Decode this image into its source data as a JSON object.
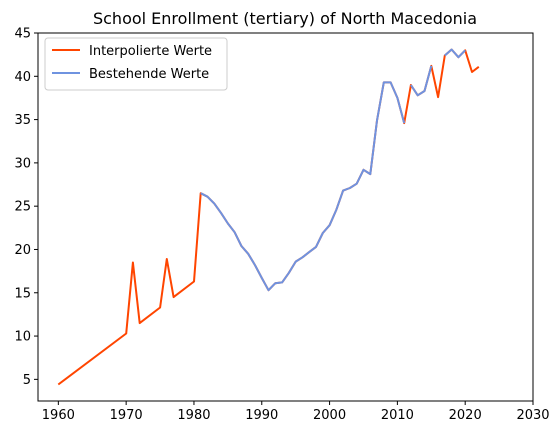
{
  "chart_data": {
    "type": "line",
    "title": "School Enrollment (tertiary) of North Macedonia",
    "xlabel": "",
    "ylabel": "",
    "xlim": [
      1957,
      2030
    ],
    "ylim": [
      2.5,
      45
    ],
    "xticks": [
      "1960",
      "1970",
      "1980",
      "1990",
      "2000",
      "2010",
      "2020",
      "2030"
    ],
    "yticks": [
      "5",
      "10",
      "15",
      "20",
      "25",
      "30",
      "35",
      "40",
      "45"
    ],
    "grid": false,
    "legend_position": "top-left",
    "series": [
      {
        "name": "Interpolierte Werte",
        "color": "#ff4500",
        "x": [
          1960,
          1970,
          1971,
          1972,
          1975,
          1976,
          1977,
          1980,
          1981,
          1982,
          1983,
          1984,
          1985,
          1986,
          1987,
          1988,
          1989,
          1990,
          1991,
          1992,
          1993,
          1994,
          1995,
          1996,
          1997,
          1998,
          1999,
          2000,
          2001,
          2002,
          2003,
          2004,
          2005,
          2006,
          2007,
          2008,
          2009,
          2010,
          2011,
          2012,
          2013,
          2014,
          2015,
          2016,
          2017,
          2018,
          2019,
          2020,
          2021,
          2022
        ],
        "y": [
          4.4,
          10.3,
          18.5,
          11.5,
          13.3,
          18.9,
          14.5,
          16.3,
          26.5,
          26.1,
          25.3,
          24.2,
          23.0,
          22.0,
          20.4,
          19.5,
          18.2,
          16.7,
          15.3,
          16.1,
          16.2,
          17.3,
          18.6,
          19.1,
          19.7,
          20.3,
          21.9,
          22.8,
          24.6,
          26.8,
          27.1,
          27.6,
          29.2,
          28.7,
          34.9,
          39.3,
          39.3,
          37.5,
          34.6,
          39.0,
          37.8,
          38.3,
          41.2,
          37.6,
          42.4,
          43.1,
          42.2,
          43.0,
          40.5,
          41.1
        ]
      },
      {
        "name": "Bestehende Werte",
        "color": "#6f93e0",
        "x": [
          1981,
          1982,
          1983,
          1984,
          1985,
          1986,
          1987,
          1988,
          1989,
          1990,
          1991,
          1992,
          1993,
          1994,
          1995,
          1996,
          1997,
          1998,
          1999,
          2000,
          2001,
          2002,
          2003,
          2004,
          2005,
          2006,
          2007,
          2008,
          2009,
          2010,
          2011,
          2012,
          2013,
          2014,
          2015,
          2016,
          2017,
          2018,
          2019,
          2020
        ],
        "y": [
          26.5,
          26.1,
          25.3,
          24.2,
          23.0,
          22.0,
          20.4,
          19.5,
          18.2,
          16.7,
          15.3,
          16.1,
          16.2,
          17.3,
          18.6,
          19.1,
          19.7,
          20.3,
          21.9,
          22.8,
          24.6,
          26.8,
          27.1,
          27.6,
          29.2,
          28.7,
          34.9,
          39.3,
          39.3,
          37.5,
          34.6,
          39.0,
          37.8,
          38.3,
          41.2,
          37.6,
          42.4,
          43.1,
          42.2,
          43.0
        ],
        "segments": [
          [
            1981,
            2011
          ],
          [
            2012,
            2015
          ],
          [
            2017,
            2020
          ]
        ]
      }
    ]
  }
}
